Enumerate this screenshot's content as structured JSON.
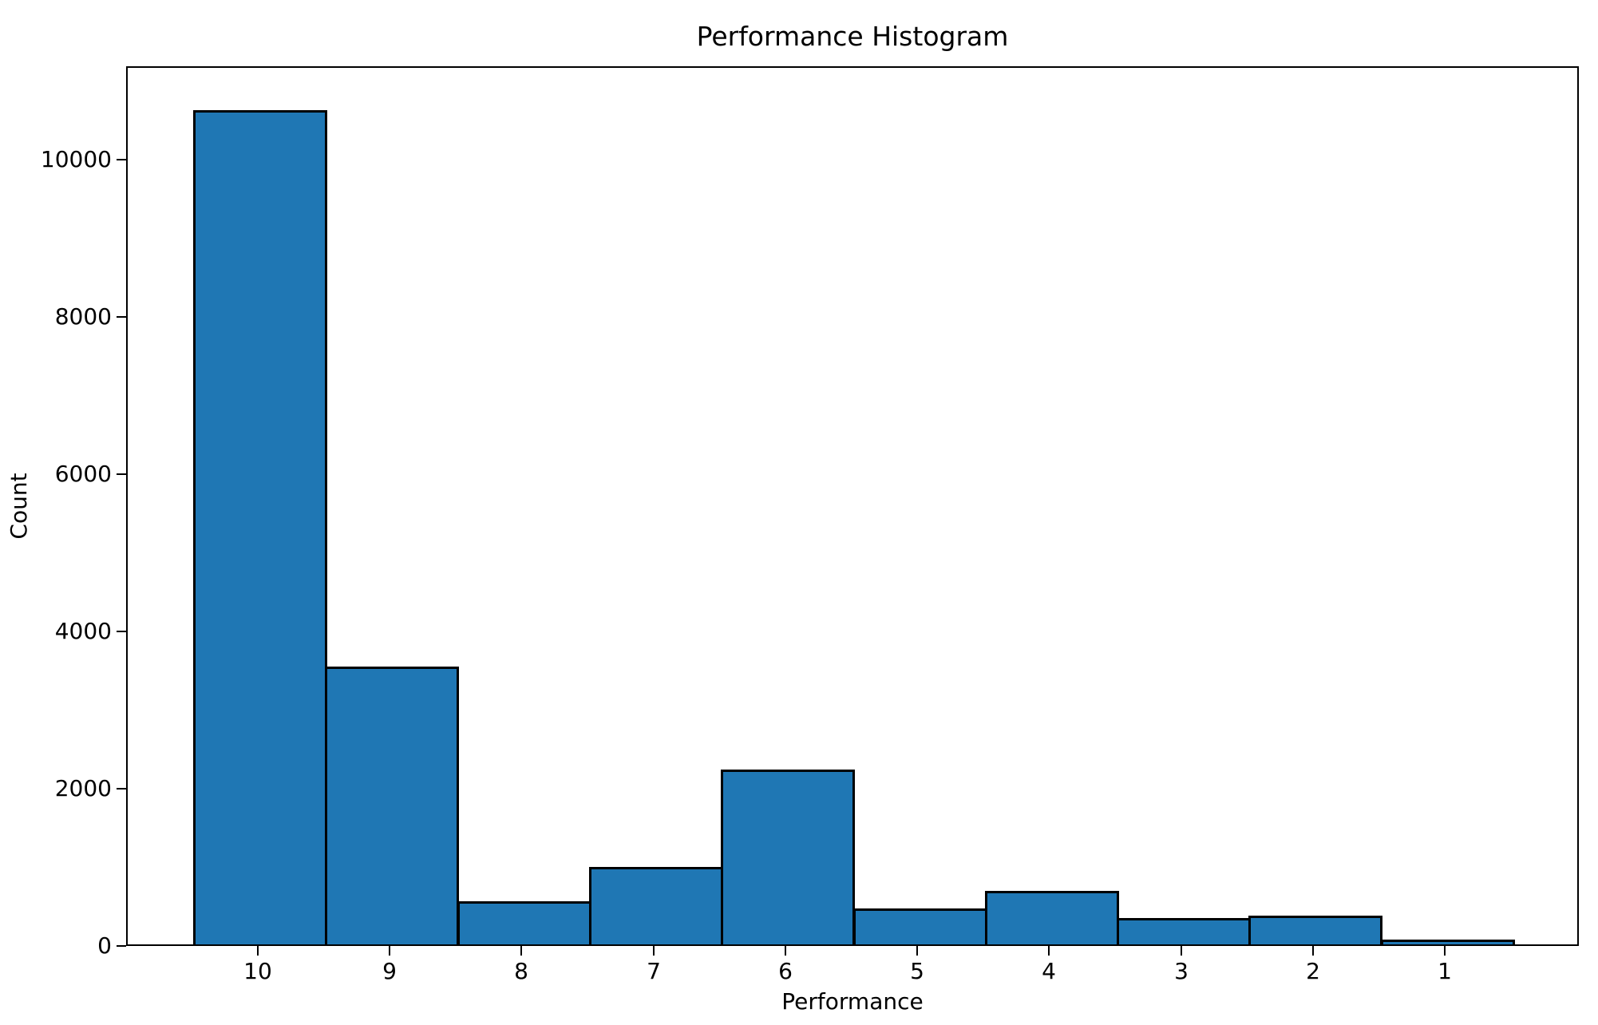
{
  "figure": {
    "background": "#ffffff"
  },
  "chart_data": {
    "type": "bar",
    "title": "Performance Histogram",
    "xlabel": "Performance",
    "ylabel": "Count",
    "categories": [
      "10",
      "9",
      "8",
      "7",
      "6",
      "5",
      "4",
      "3",
      "2",
      "1"
    ],
    "values": [
      10650,
      3550,
      550,
      990,
      2230,
      455,
      680,
      335,
      365,
      60
    ],
    "yticks": [
      0,
      2000,
      4000,
      6000,
      8000,
      10000
    ],
    "ylim": [
      0,
      11190
    ],
    "bar_color": "#1f77b4",
    "bar_edge_color": "#000000",
    "grid": false,
    "legend": "none"
  }
}
